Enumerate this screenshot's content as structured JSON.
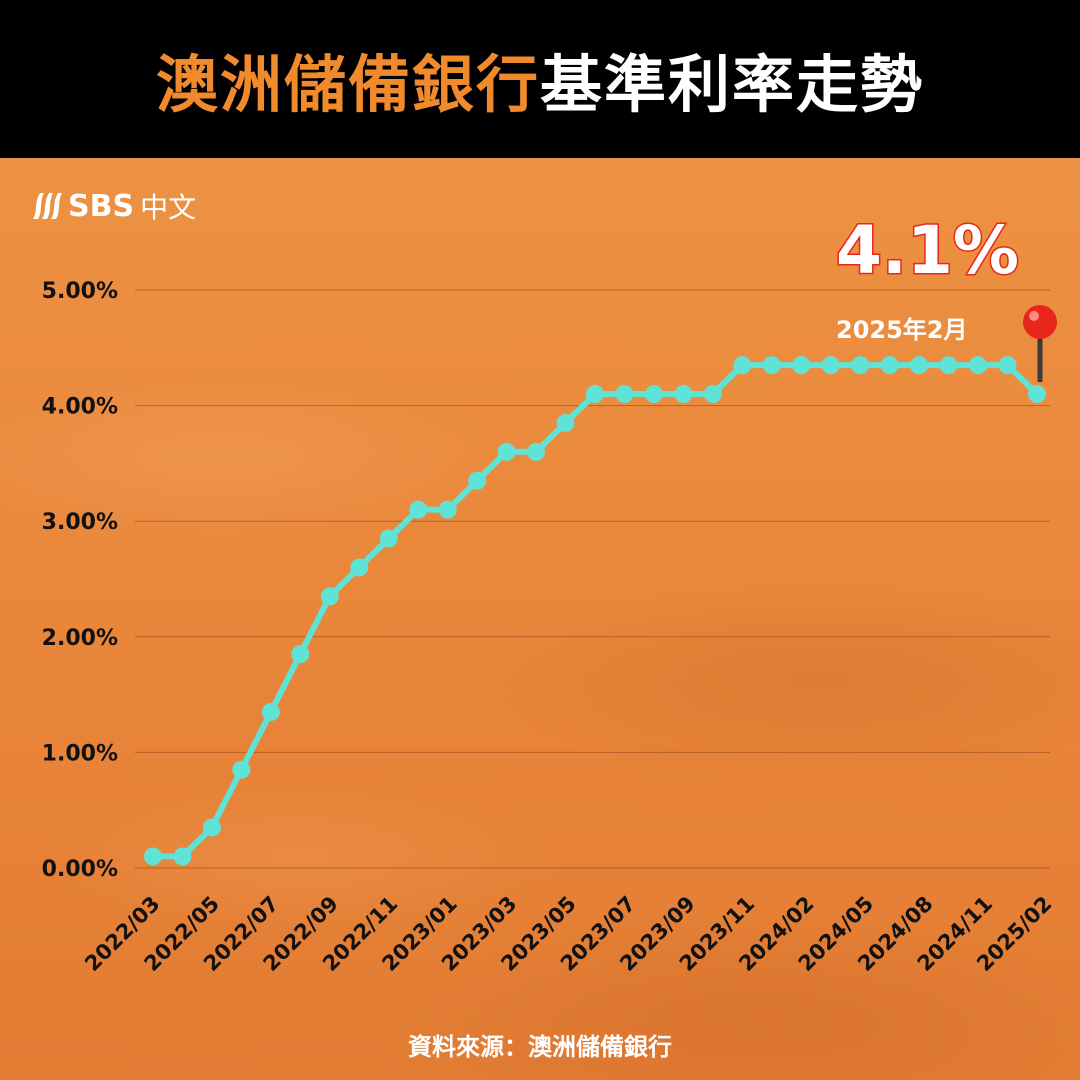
{
  "header": {
    "title_highlight": "澳洲儲備銀行",
    "title_rest": "基準利率走勢"
  },
  "logo": {
    "brand": "SBS",
    "language": "中文"
  },
  "callout": {
    "value": "4.1%",
    "date": "2025年2月",
    "marker_icon": "map-pin-icon"
  },
  "source": "資料來源：澳洲儲備銀行",
  "colors": {
    "background": "#ea8a3c",
    "title_bar": "#000000",
    "title_highlight": "#f08a2c",
    "line": "#5fe3d6",
    "pin": "#e8261b"
  },
  "chart_data": {
    "type": "line",
    "title": "澳洲儲備銀行基準利率走勢",
    "xlabel": "",
    "ylabel": "",
    "ylim": [
      0,
      5
    ],
    "yticks": [
      "0.00%",
      "1.00%",
      "2.00%",
      "3.00%",
      "4.00%",
      "5.00%"
    ],
    "grid": true,
    "xticks": [
      "2022/03",
      "2022/05",
      "2022/07",
      "2022/09",
      "2022/11",
      "2023/01",
      "2023/03",
      "2023/05",
      "2023/07",
      "2023/09",
      "2023/11",
      "2024/02",
      "2024/05",
      "2024/08",
      "2024/11",
      "2025/02"
    ],
    "series": [
      {
        "name": "",
        "values": [
          0.1,
          0.1,
          0.35,
          0.85,
          1.35,
          1.85,
          2.35,
          2.6,
          2.85,
          3.1,
          3.1,
          3.35,
          3.6,
          3.6,
          3.85,
          4.1,
          4.1,
          4.1,
          4.1,
          4.1,
          4.35,
          4.35,
          4.35,
          4.35,
          4.35,
          4.35,
          4.35,
          4.35,
          4.35,
          4.35,
          4.1
        ]
      }
    ]
  }
}
